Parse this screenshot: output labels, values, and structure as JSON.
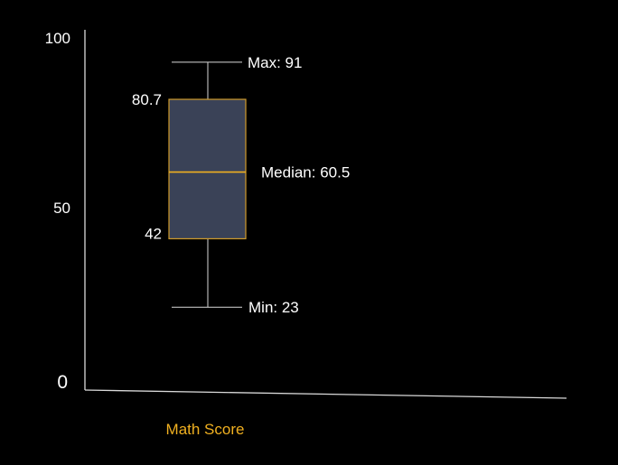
{
  "chart_data": {
    "type": "boxplot",
    "title": "",
    "xlabel": "Math Score",
    "ylabel": "",
    "ylim": [
      0,
      100
    ],
    "yticks": [
      "0",
      "50",
      "100"
    ],
    "series": [
      {
        "category": "Math Score",
        "min": 23,
        "q1": 42,
        "median": 60.5,
        "q3": 80.7,
        "max": 91
      }
    ],
    "annotations": {
      "max_label": "Max: 91",
      "q3_label": "80.7",
      "median_label": "Median: 60.5",
      "q1_label": "42",
      "min_label": "Min: 23"
    },
    "grid": false,
    "legend": "none"
  },
  "colors": {
    "background": "#000000",
    "axis": "#d9d9d9",
    "box_fill": "#3a4257",
    "box_stroke": "#d19b2a",
    "median": "#f0b020",
    "whisker": "#d9d9d9",
    "text": "#ffffff",
    "xlabel": "#f0b020"
  }
}
